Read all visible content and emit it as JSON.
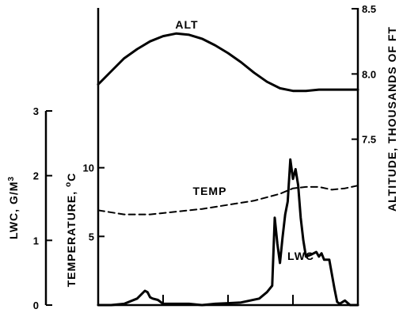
{
  "chart_data": {
    "type": "line",
    "axes": {
      "lwc": {
        "label": "LWC, G/M",
        "label_sup": "3",
        "range": [
          0,
          3
        ],
        "ticks": [
          "0",
          "1",
          "2",
          "3"
        ]
      },
      "temperature": {
        "label": "TEMPERATURE, ",
        "label_sup": "o",
        "label_unit": "C",
        "range": [
          0,
          15
        ],
        "ticks": [
          "5",
          "10"
        ]
      },
      "altitude": {
        "label": "ALTITUDE, THOUSANDS OF FT",
        "range": [
          7.0,
          8.5
        ],
        "ticks": [
          "7.5",
          "8.0",
          "8.5"
        ]
      }
    },
    "x_range": [
      0,
      100
    ],
    "x_ticks": [
      25,
      50,
      75
    ],
    "series": [
      {
        "name": "ALT",
        "axis": "altitude",
        "style": "solid",
        "x": [
          0,
          5,
          10,
          15,
          20,
          25,
          30,
          35,
          40,
          45,
          50,
          55,
          60,
          65,
          70,
          75,
          80,
          85,
          90,
          95,
          100
        ],
        "y": [
          7.92,
          8.02,
          8.12,
          8.19,
          8.25,
          8.29,
          8.31,
          8.3,
          8.27,
          8.22,
          8.16,
          8.09,
          8.01,
          7.94,
          7.89,
          7.87,
          7.87,
          7.88,
          7.88,
          7.88,
          7.88
        ]
      },
      {
        "name": "TEMP",
        "axis": "temperature",
        "style": "dashed",
        "x": [
          0,
          10,
          20,
          30,
          40,
          50,
          60,
          70,
          75,
          80,
          85,
          90,
          95,
          100
        ],
        "y": [
          6.9,
          6.6,
          6.6,
          6.8,
          7.0,
          7.3,
          7.6,
          8.1,
          8.5,
          8.6,
          8.6,
          8.4,
          8.5,
          8.7
        ]
      },
      {
        "name": "LWC",
        "axis": "lwc",
        "style": "solid",
        "x": [
          0,
          5,
          10,
          15,
          18,
          19,
          20,
          21,
          23,
          25,
          30,
          35,
          40,
          45,
          50,
          55,
          62,
          65,
          67,
          68,
          69,
          70,
          71,
          72,
          73,
          74,
          75,
          76,
          77,
          78,
          79,
          80,
          82,
          84,
          85,
          86,
          87,
          89,
          91,
          92,
          93,
          95,
          97,
          100
        ],
        "y": [
          0,
          0,
          0.02,
          0.1,
          0.22,
          0.2,
          0.12,
          0.1,
          0.08,
          0.02,
          0.02,
          0.02,
          0.0,
          0.02,
          0.03,
          0.04,
          0.1,
          0.2,
          0.3,
          1.35,
          0.95,
          0.65,
          1.05,
          1.4,
          1.6,
          2.25,
          1.95,
          2.1,
          1.85,
          1.35,
          1.0,
          0.75,
          0.78,
          0.82,
          0.75,
          0.8,
          0.7,
          0.7,
          0.25,
          0.05,
          0.02,
          0.07,
          0.0,
          0.0
        ]
      }
    ]
  }
}
